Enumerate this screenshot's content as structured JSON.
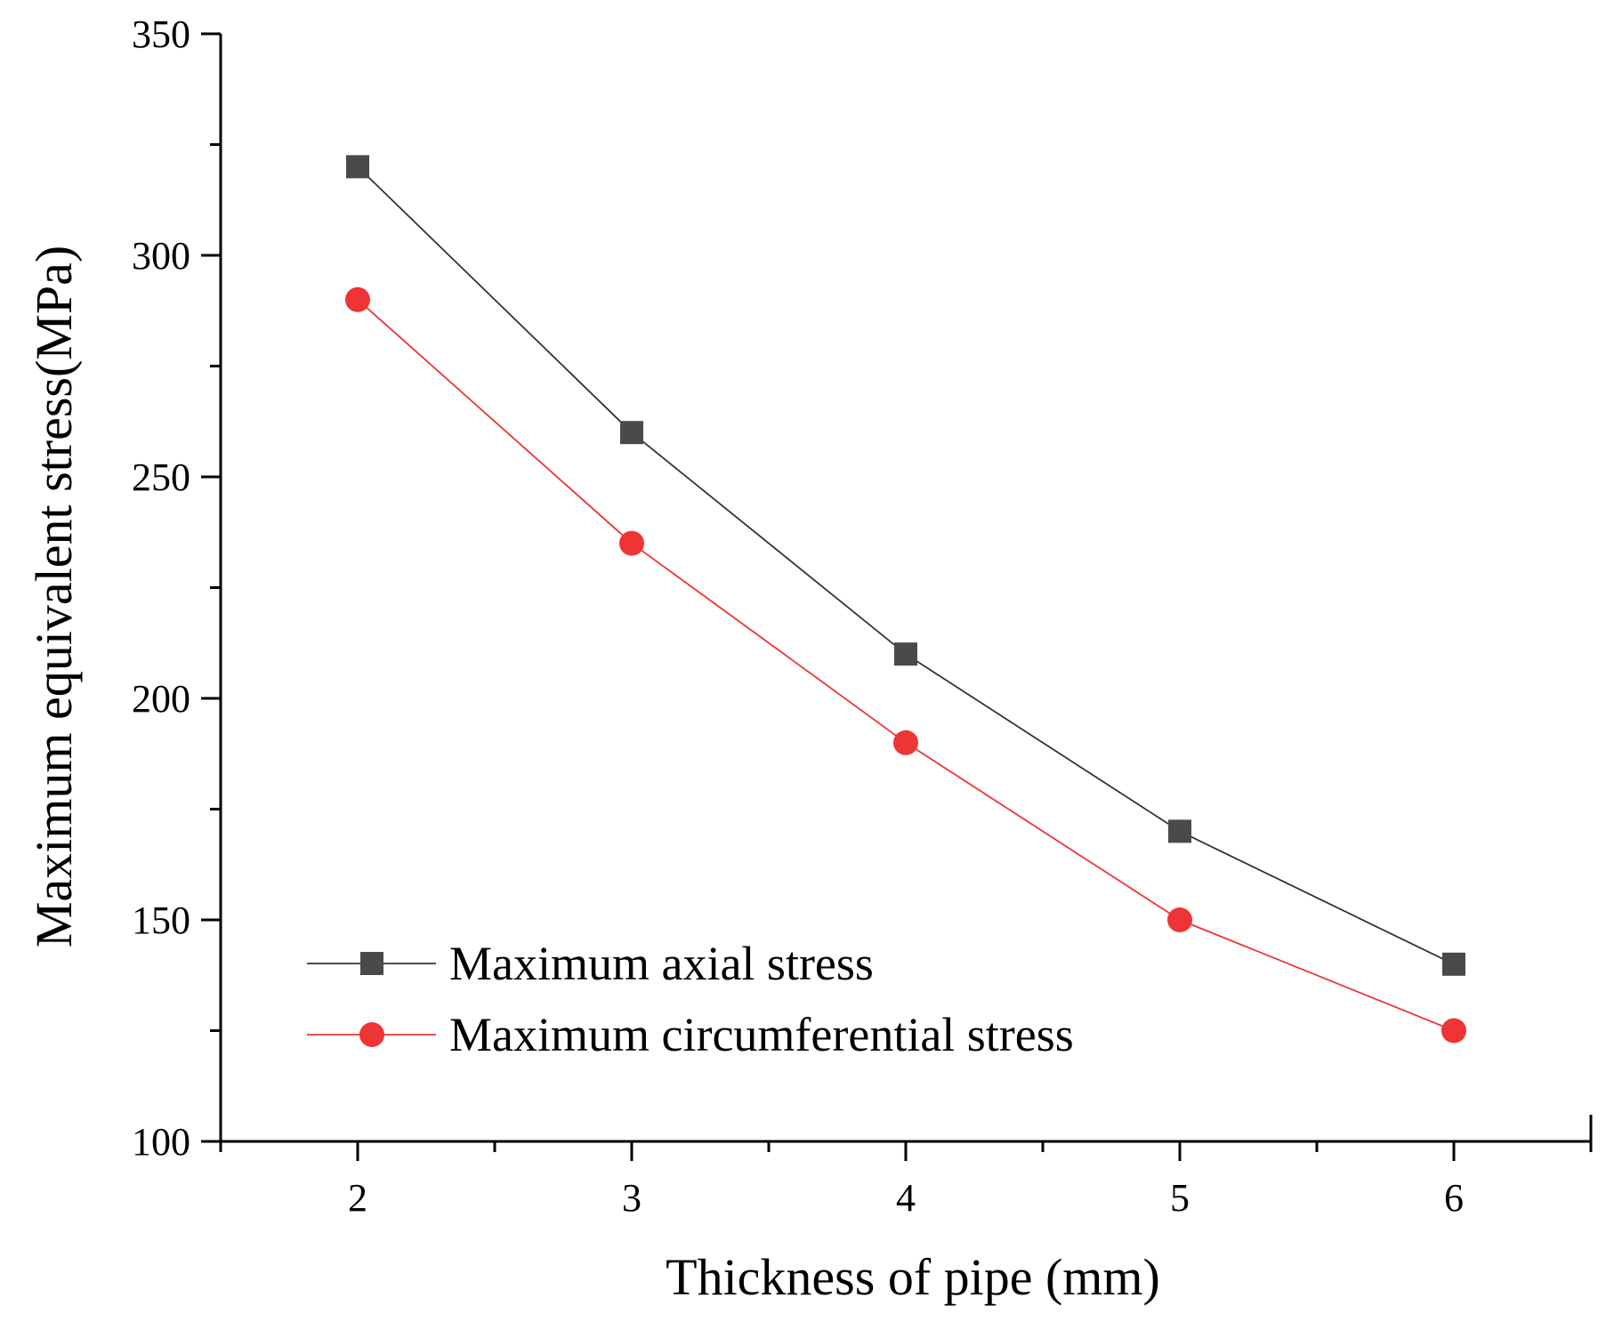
{
  "chart_data": {
    "type": "line",
    "title": "",
    "xlabel": "Thickness of pipe (mm)",
    "ylabel": "Maximum equivalent stress(MPa)",
    "x": [
      2,
      3,
      4,
      5,
      6
    ],
    "xticks": [
      "2",
      "3",
      "4",
      "5",
      "6"
    ],
    "xlim": [
      1.5,
      6.5
    ],
    "ylim": [
      100,
      350
    ],
    "yticks": [
      "100",
      "150",
      "200",
      "250",
      "300",
      "350"
    ],
    "grid": false,
    "legend_position": "bottom-left",
    "series": [
      {
        "name": "Maximum axial stress",
        "marker": "square",
        "color": "#4a4a4a",
        "line_color": "#333333",
        "values": [
          320,
          260,
          210,
          170,
          140
        ]
      },
      {
        "name": "Maximum circumferential stress",
        "marker": "circle",
        "color": "#ee3434",
        "line_color": "#ee3434",
        "values": [
          290,
          235,
          190,
          150,
          125
        ]
      }
    ]
  }
}
